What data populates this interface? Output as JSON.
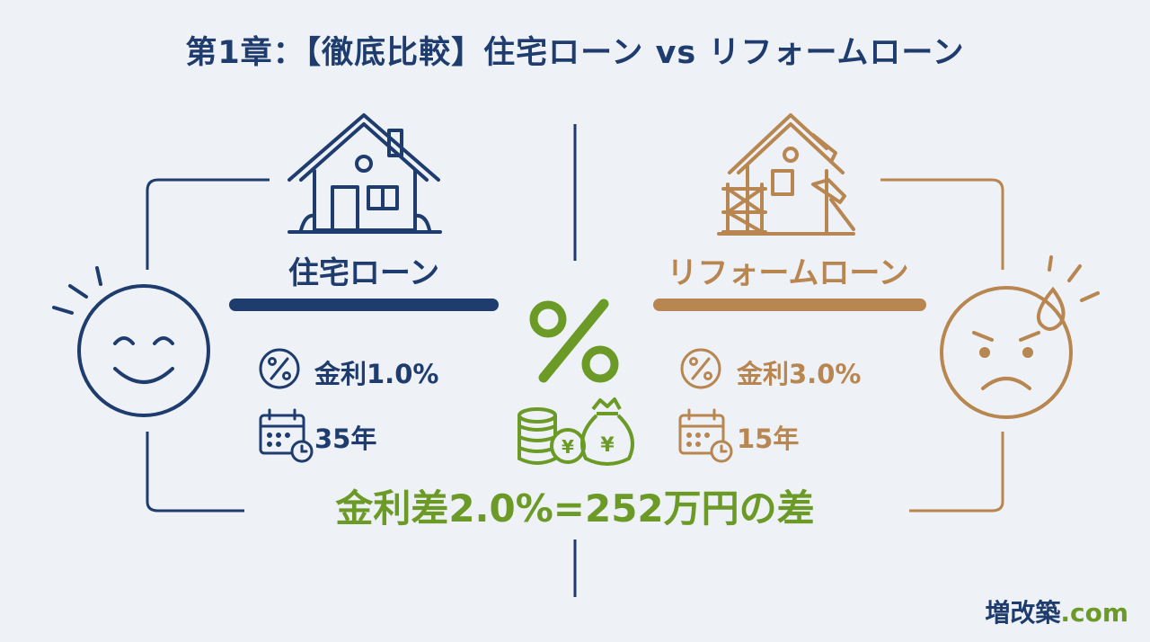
{
  "title": "第1章：【徹底比較】住宅ローン vs リフォームローン",
  "left": {
    "loan_name": "住宅ローン",
    "rate_label": "金利1.0%",
    "term_label": "35年",
    "color": "#1f3c6e",
    "icons": [
      "house-icon",
      "smile-face-icon",
      "percent-icon",
      "calendar-clock-icon"
    ]
  },
  "right": {
    "loan_name": "リフォームローン",
    "rate_label": "金利3.0%",
    "term_label": "15年",
    "color": "#b88650",
    "icons": [
      "renovation-house-icon",
      "hammer-icon",
      "worried-face-icon",
      "percent-icon",
      "calendar-clock-icon"
    ]
  },
  "center": {
    "icons": [
      "big-percent-icon",
      "coins-icon",
      "money-bag-icon"
    ],
    "color": "#6b9a26"
  },
  "summary": "金利差2.0%=252万円の差",
  "brand": {
    "name": "増改築",
    "suffix": ".com"
  }
}
